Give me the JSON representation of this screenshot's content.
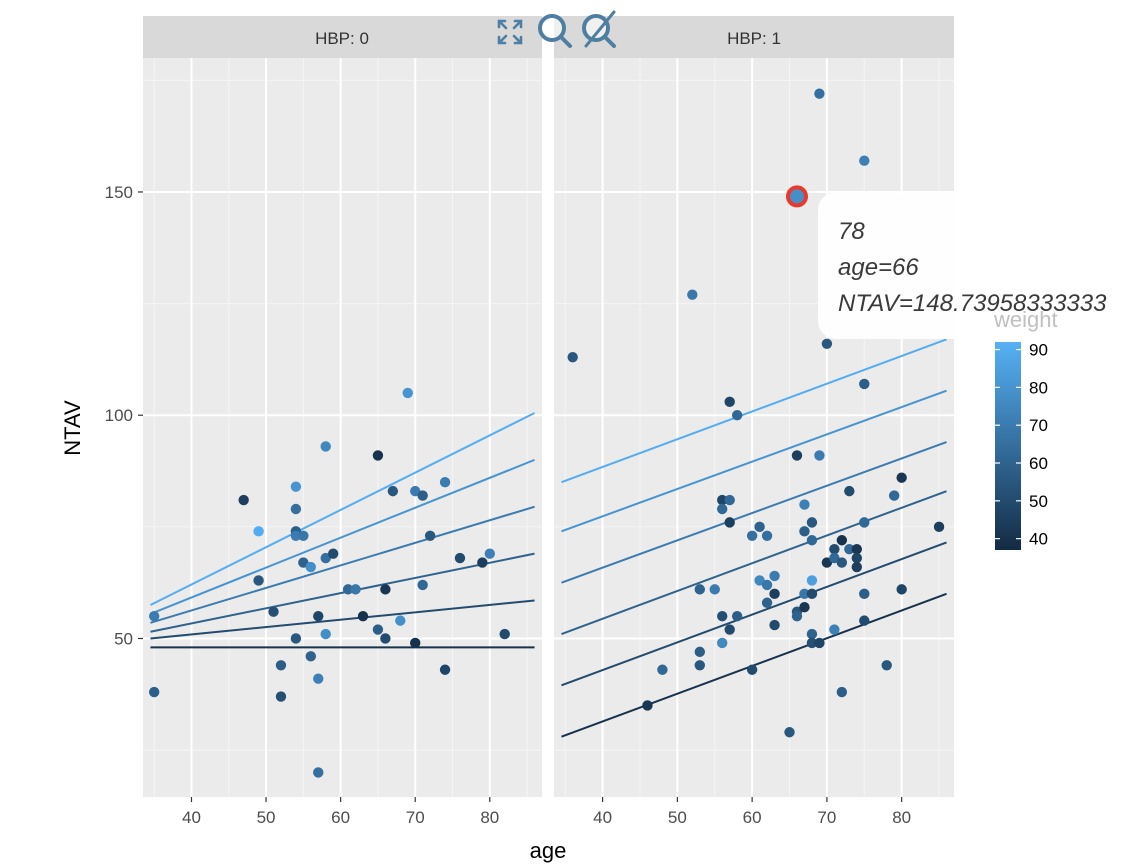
{
  "chart_data": {
    "type": "scatter",
    "x_label": "age",
    "y_label": "NTAV",
    "x_ticks": [
      40,
      50,
      60,
      70,
      80
    ],
    "y_ticks": [
      50,
      100,
      150
    ],
    "xlim": [
      33.5,
      87
    ],
    "ylim": [
      14.5,
      180
    ],
    "color_variable": "weight",
    "color_scale": {
      "low": "#132b43",
      "high": "#56b1f7",
      "min": 37,
      "max": 92
    },
    "legend": {
      "title": "weight",
      "labels": [
        40,
        50,
        60,
        70,
        80,
        90
      ],
      "position": "right"
    },
    "facets": [
      {
        "label": "HBP: 0",
        "points": [
          {
            "x": 35,
            "y": 55,
            "w": 70
          },
          {
            "x": 35,
            "y": 38,
            "w": 58
          },
          {
            "x": 47,
            "y": 81,
            "w": 45
          },
          {
            "x": 49,
            "y": 74,
            "w": 90
          },
          {
            "x": 49,
            "y": 63,
            "w": 55
          },
          {
            "x": 51,
            "y": 56,
            "w": 52
          },
          {
            "x": 52,
            "y": 44,
            "w": 58
          },
          {
            "x": 52,
            "y": 37,
            "w": 52
          },
          {
            "x": 54,
            "y": 84,
            "w": 80
          },
          {
            "x": 54,
            "y": 79,
            "w": 65
          },
          {
            "x": 54,
            "y": 74,
            "w": 58
          },
          {
            "x": 54,
            "y": 73,
            "w": 70
          },
          {
            "x": 54,
            "y": 50,
            "w": 55
          },
          {
            "x": 55,
            "y": 73,
            "w": 68
          },
          {
            "x": 55,
            "y": 67,
            "w": 60
          },
          {
            "x": 56,
            "y": 66,
            "w": 78
          },
          {
            "x": 56,
            "y": 46,
            "w": 60
          },
          {
            "x": 57,
            "y": 55,
            "w": 48
          },
          {
            "x": 57,
            "y": 41,
            "w": 72
          },
          {
            "x": 57,
            "y": 20,
            "w": 65
          },
          {
            "x": 58,
            "y": 93,
            "w": 75
          },
          {
            "x": 58,
            "y": 68,
            "w": 65
          },
          {
            "x": 58,
            "y": 51,
            "w": 78
          },
          {
            "x": 59,
            "y": 69,
            "w": 50
          },
          {
            "x": 61,
            "y": 61,
            "w": 62
          },
          {
            "x": 62,
            "y": 61,
            "w": 68
          },
          {
            "x": 63,
            "y": 55,
            "w": 40
          },
          {
            "x": 65,
            "y": 91,
            "w": 40
          },
          {
            "x": 65,
            "y": 52,
            "w": 58
          },
          {
            "x": 66,
            "y": 61,
            "w": 42
          },
          {
            "x": 66,
            "y": 50,
            "w": 50
          },
          {
            "x": 67,
            "y": 83,
            "w": 55
          },
          {
            "x": 68,
            "y": 54,
            "w": 78
          },
          {
            "x": 69,
            "y": 105,
            "w": 80
          },
          {
            "x": 70,
            "y": 83,
            "w": 70
          },
          {
            "x": 70,
            "y": 49,
            "w": 40
          },
          {
            "x": 71,
            "y": 82,
            "w": 58
          },
          {
            "x": 71,
            "y": 62,
            "w": 62
          },
          {
            "x": 72,
            "y": 73,
            "w": 55
          },
          {
            "x": 74,
            "y": 85,
            "w": 70
          },
          {
            "x": 74,
            "y": 43,
            "w": 48
          },
          {
            "x": 76,
            "y": 68,
            "w": 50
          },
          {
            "x": 79,
            "y": 67,
            "w": 45
          },
          {
            "x": 80,
            "y": 69,
            "w": 72
          },
          {
            "x": 82,
            "y": 51,
            "w": 50
          }
        ],
        "fit_lines": [
          {
            "w": 90,
            "y_start": 57.5,
            "y_end": 100.5
          },
          {
            "w": 80,
            "y_start": 55.5,
            "y_end": 90
          },
          {
            "w": 70,
            "y_start": 53.5,
            "y_end": 79.5
          },
          {
            "w": 60,
            "y_start": 51.5,
            "y_end": 69
          },
          {
            "w": 50,
            "y_start": 50,
            "y_end": 58.5
          },
          {
            "w": 40,
            "y_start": 48,
            "y_end": 48
          }
        ]
      },
      {
        "label": "HBP: 1",
        "points": [
          {
            "x": 36,
            "y": 113,
            "w": 55
          },
          {
            "x": 46,
            "y": 35,
            "w": 42
          },
          {
            "x": 48,
            "y": 43,
            "w": 62
          },
          {
            "x": 52,
            "y": 127,
            "w": 68
          },
          {
            "x": 53,
            "y": 61,
            "w": 60
          },
          {
            "x": 53,
            "y": 47,
            "w": 58
          },
          {
            "x": 53,
            "y": 44,
            "w": 55
          },
          {
            "x": 55,
            "y": 61,
            "w": 70
          },
          {
            "x": 56,
            "y": 81,
            "w": 48
          },
          {
            "x": 56,
            "y": 79,
            "w": 62
          },
          {
            "x": 56,
            "y": 55,
            "w": 52
          },
          {
            "x": 56,
            "y": 49,
            "w": 75
          },
          {
            "x": 57,
            "y": 103,
            "w": 48
          },
          {
            "x": 57,
            "y": 81,
            "w": 62
          },
          {
            "x": 57,
            "y": 76,
            "w": 45
          },
          {
            "x": 57,
            "y": 52,
            "w": 50
          },
          {
            "x": 58,
            "y": 100,
            "w": 62
          },
          {
            "x": 58,
            "y": 55,
            "w": 58
          },
          {
            "x": 60,
            "y": 73,
            "w": 65
          },
          {
            "x": 60,
            "y": 43,
            "w": 50
          },
          {
            "x": 61,
            "y": 75,
            "w": 60
          },
          {
            "x": 61,
            "y": 63,
            "w": 75
          },
          {
            "x": 62,
            "y": 73,
            "w": 65
          },
          {
            "x": 62,
            "y": 62,
            "w": 68
          },
          {
            "x": 62,
            "y": 58,
            "w": 60
          },
          {
            "x": 63,
            "y": 64,
            "w": 70
          },
          {
            "x": 63,
            "y": 60,
            "w": 45
          },
          {
            "x": 63,
            "y": 53,
            "w": 50
          },
          {
            "x": 65,
            "y": 29,
            "w": 55
          },
          {
            "x": 66,
            "y": 91,
            "w": 45
          },
          {
            "x": 66,
            "y": 149,
            "w": 78
          },
          {
            "x": 66,
            "y": 56,
            "w": 55
          },
          {
            "x": 66,
            "y": 55,
            "w": 60
          },
          {
            "x": 67,
            "y": 80,
            "w": 72
          },
          {
            "x": 67,
            "y": 74,
            "w": 58
          },
          {
            "x": 67,
            "y": 60,
            "w": 68
          },
          {
            "x": 67,
            "y": 57,
            "w": 42
          },
          {
            "x": 68,
            "y": 76,
            "w": 55
          },
          {
            "x": 68,
            "y": 72,
            "w": 62
          },
          {
            "x": 68,
            "y": 63,
            "w": 85
          },
          {
            "x": 68,
            "y": 60,
            "w": 50
          },
          {
            "x": 68,
            "y": 51,
            "w": 60
          },
          {
            "x": 68,
            "y": 49,
            "w": 52
          },
          {
            "x": 69,
            "y": 172,
            "w": 65
          },
          {
            "x": 69,
            "y": 91,
            "w": 70
          },
          {
            "x": 69,
            "y": 49,
            "w": 48
          },
          {
            "x": 70,
            "y": 116,
            "w": 55
          },
          {
            "x": 70,
            "y": 67,
            "w": 42
          },
          {
            "x": 71,
            "y": 70,
            "w": 50
          },
          {
            "x": 71,
            "y": 68,
            "w": 62
          },
          {
            "x": 71,
            "y": 52,
            "w": 72
          },
          {
            "x": 72,
            "y": 72,
            "w": 40
          },
          {
            "x": 72,
            "y": 67,
            "w": 55
          },
          {
            "x": 72,
            "y": 38,
            "w": 58
          },
          {
            "x": 73,
            "y": 83,
            "w": 50
          },
          {
            "x": 73,
            "y": 70,
            "w": 62
          },
          {
            "x": 74,
            "y": 70,
            "w": 42
          },
          {
            "x": 74,
            "y": 68,
            "w": 48
          },
          {
            "x": 74,
            "y": 66,
            "w": 45
          },
          {
            "x": 75,
            "y": 157,
            "w": 72
          },
          {
            "x": 75,
            "y": 107,
            "w": 58
          },
          {
            "x": 75,
            "y": 76,
            "w": 62
          },
          {
            "x": 75,
            "y": 60,
            "w": 58
          },
          {
            "x": 75,
            "y": 54,
            "w": 50
          },
          {
            "x": 78,
            "y": 44,
            "w": 55
          },
          {
            "x": 79,
            "y": 82,
            "w": 62
          },
          {
            "x": 80,
            "y": 86,
            "w": 42
          },
          {
            "x": 80,
            "y": 61,
            "w": 48
          },
          {
            "x": 85,
            "y": 75,
            "w": 45
          }
        ],
        "fit_lines": [
          {
            "w": 90,
            "y_start": 85,
            "y_end": 117
          },
          {
            "w": 80,
            "y_start": 74,
            "y_end": 105.5
          },
          {
            "w": 70,
            "y_start": 62.5,
            "y_end": 94
          },
          {
            "w": 60,
            "y_start": 51,
            "y_end": 83
          },
          {
            "w": 50,
            "y_start": 39.5,
            "y_end": 71.5
          },
          {
            "w": 40,
            "y_start": 28,
            "y_end": 60
          }
        ]
      }
    ],
    "highlight": {
      "facet": 1,
      "x": 66,
      "y": 149,
      "w": 78
    },
    "tooltip": {
      "lines": [
        "78",
        "age=66",
        "NTAV=148.73958333333"
      ]
    }
  },
  "colors": {
    "panel_bg": "#ebebeb",
    "strip_bg": "#d9d9d9",
    "grid_major": "#ffffff",
    "highlight_ring": "#e8392e",
    "toolbar_icon": "#4e7ea1"
  },
  "toolbar": {
    "icons": [
      "expand-icon",
      "zoom-icon",
      "reset-zoom-icon"
    ]
  }
}
